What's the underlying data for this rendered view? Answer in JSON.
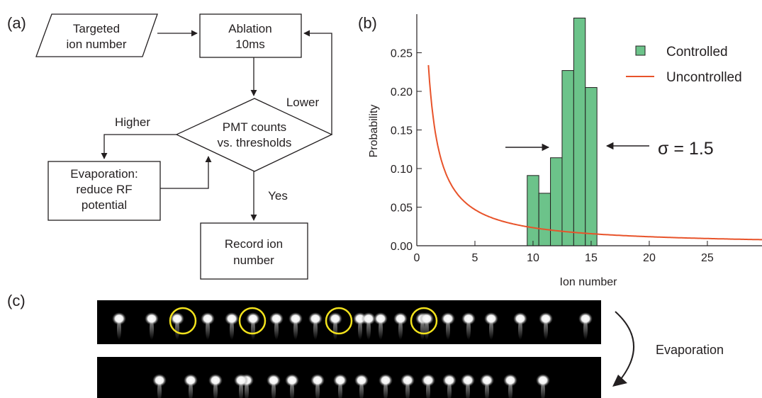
{
  "panel_labels": {
    "a": "(a)",
    "b": "(b)",
    "c": "(c)"
  },
  "flowchart": {
    "input": [
      "Targeted",
      "ion number"
    ],
    "ablation": [
      "Ablation",
      "10ms"
    ],
    "decision": [
      "PMT counts",
      "vs. thresholds"
    ],
    "evaporation": [
      "Evaporation:",
      "reduce RF",
      "potential"
    ],
    "record": [
      "Record ion",
      "number"
    ],
    "edge_higher": "Higher",
    "edge_lower": "Lower",
    "edge_yes": "Yes"
  },
  "chart_data": {
    "type": "bar",
    "xlabel": "Ion number",
    "ylabel": "Probability",
    "xlim": [
      0,
      29.7
    ],
    "ylim": [
      0,
      0.3
    ],
    "xticks": [
      0,
      5,
      10,
      15,
      20,
      25
    ],
    "yticks": [
      0.0,
      0.05,
      0.1,
      0.15,
      0.2,
      0.25
    ],
    "ytick_labels": [
      "0.00",
      "0.05",
      "0.10",
      "0.15",
      "0.20",
      "0.25"
    ],
    "series": [
      {
        "name": "Controlled",
        "type": "bar",
        "color": "#6cc38a",
        "categories": [
          10,
          11,
          12,
          13,
          14,
          15
        ],
        "values": [
          0.091,
          0.068,
          0.114,
          0.227,
          0.295,
          0.205
        ]
      },
      {
        "name": "Uncontrolled",
        "type": "line",
        "color": "#e8532a",
        "x_range": [
          1,
          29.7
        ],
        "function": "0.234 / x"
      }
    ],
    "annotation": "σ = 1.5",
    "legend_position": "top-right"
  },
  "images": {
    "caption": "Evaporation",
    "top_ion_count": 22,
    "bottom_ion_count": 18,
    "highlighted_gaps": 4,
    "highlight_color": "#f2e21c"
  }
}
